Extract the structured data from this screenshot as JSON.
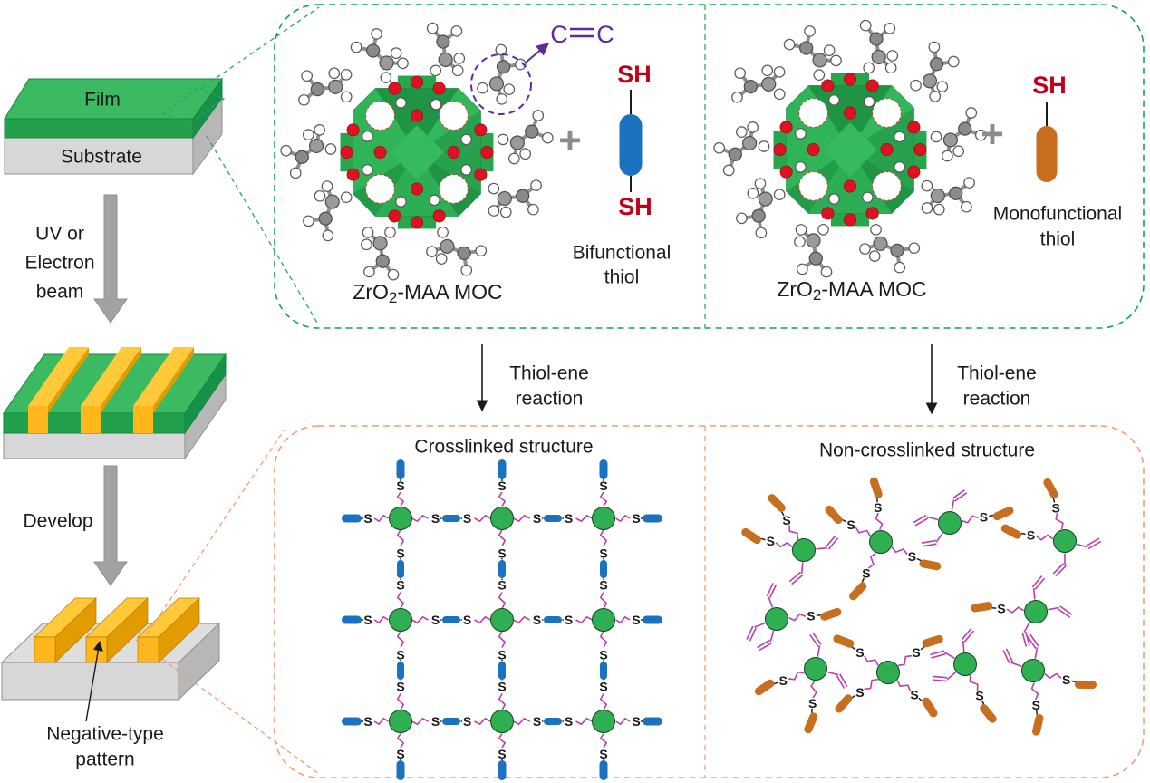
{
  "process": {
    "film": "Film",
    "substrate": "Substrate",
    "exposure_lines": [
      "UV or",
      "Electron",
      "beam"
    ],
    "develop": "Develop",
    "pattern_lines": [
      "Negative-type",
      "pattern"
    ]
  },
  "top_panel": {
    "plus": "+",
    "cc_left": "C",
    "cc_right": "C",
    "sh": "SH",
    "moc_prefix": "ZrO",
    "moc_sub": "2",
    "moc_suffix": "-MAA MOC",
    "bifunctional_lines": [
      "Bifunctional",
      "thiol"
    ],
    "monofunctional_lines": [
      "Monofunctional",
      "thiol"
    ]
  },
  "reaction_lines": [
    "Thiol-ene",
    "reaction"
  ],
  "bottom_panel": {
    "left_title": "Crosslinked structure",
    "right_title": "Non-crosslinked structure",
    "sulfur": "S"
  },
  "colors": {
    "film_top": "#3bba62",
    "film_front": "#22a04c",
    "film_side": "#17914a",
    "substrate_front": "#d7d7d7",
    "substrate_side": "#b7b7b7",
    "bar_top": "#ffc93a",
    "bar_front": "#ffb71c",
    "bar_side": "#e29b00",
    "arrow_gray": "#a2a2a2",
    "panel_green": "#14a356",
    "panel_orange": "#ef9e72",
    "purple": "#5e2b9e",
    "red": "#c81428",
    "blue_capsule": "#1b72c0",
    "orange_capsule": "#c86e1e",
    "node_green": "#2faf52",
    "chain_magenta": "#bc3ead",
    "plus_gray": "#8c8c8c"
  }
}
